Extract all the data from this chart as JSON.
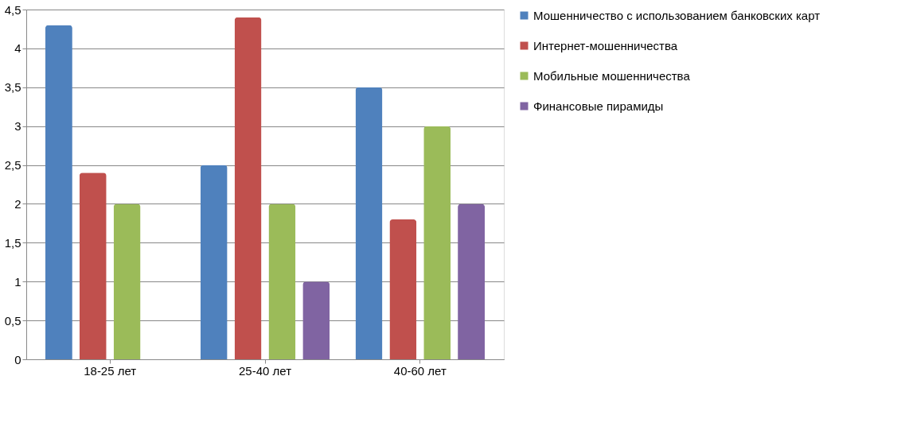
{
  "chart_data": {
    "type": "bar",
    "categories": [
      "18-25 лет",
      "25-40 лет",
      "40-60 лет"
    ],
    "series": [
      {
        "name": "Мошенничество с использованием банковских карт",
        "color": "#4f81bd",
        "values": [
          4.3,
          2.5,
          3.5
        ]
      },
      {
        "name": "Интернет-мошенничества",
        "color": "#c0504d",
        "values": [
          2.4,
          4.4,
          1.8
        ]
      },
      {
        "name": "Мобильные мошенничества",
        "color": "#9bbb59",
        "values": [
          2.0,
          2.0,
          3.0
        ]
      },
      {
        "name": "Финансовые пирамиды",
        "color": "#8064a2",
        "values": [
          null,
          1.0,
          2.0
        ]
      }
    ],
    "ylim": [
      0,
      4.5
    ],
    "yticks": [
      0,
      {
        "value": 0.5,
        "label": "0,5"
      },
      1,
      {
        "value": 1.5,
        "label": "1,5"
      },
      2,
      {
        "value": 2.5,
        "label": "2,5"
      },
      3,
      {
        "value": 3.5,
        "label": "3,5"
      },
      4,
      {
        "value": 4.5,
        "label": "4,5"
      }
    ],
    "grid": "y",
    "legend": "right"
  }
}
